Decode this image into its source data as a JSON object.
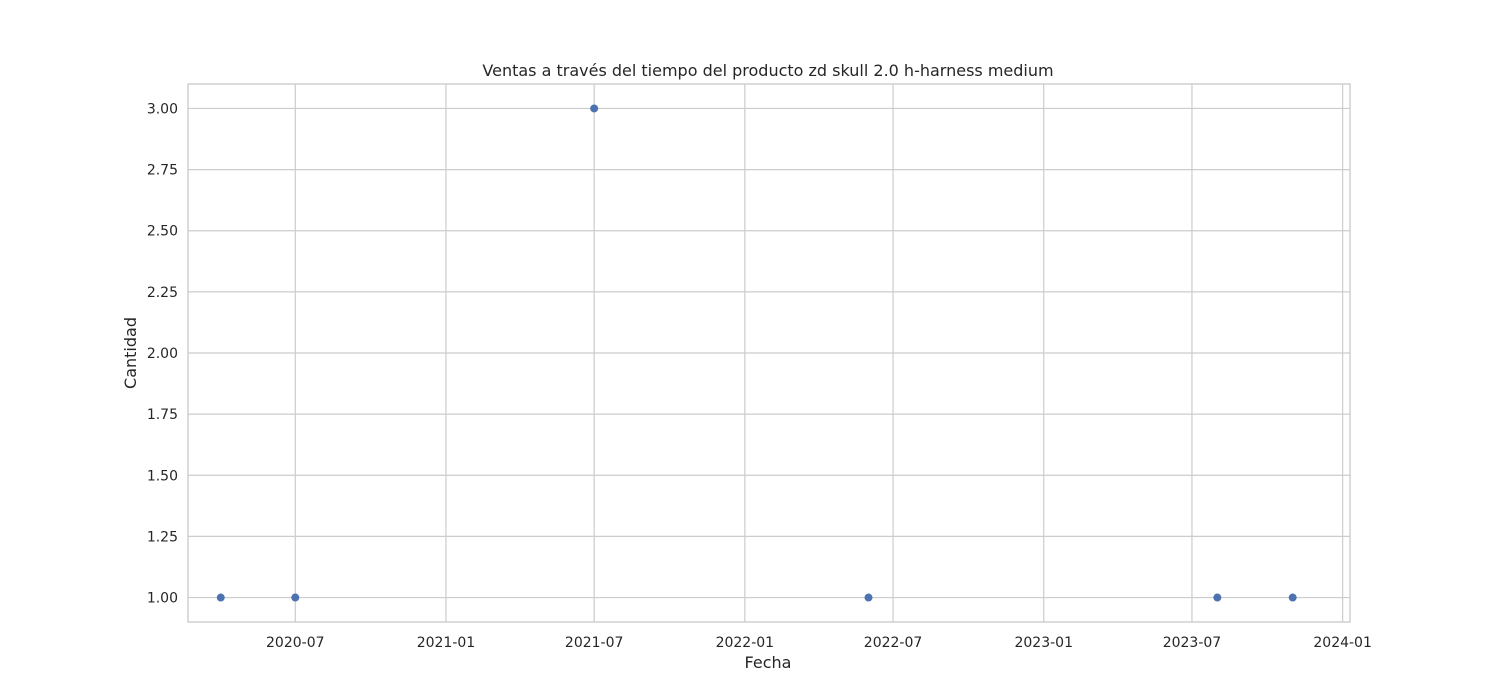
{
  "chart_data": {
    "type": "scatter",
    "title": "Ventas a través del tiempo del producto zd skull 2.0 h-harness medium",
    "xlabel": "Fecha",
    "ylabel": "Cantidad",
    "x_scale": "time",
    "xlim": [
      "2020-02-21",
      "2024-01-10"
    ],
    "ylim": [
      0.9,
      3.1
    ],
    "x_ticks": [
      "2020-07",
      "2021-01",
      "2021-07",
      "2022-01",
      "2022-07",
      "2023-01",
      "2023-07",
      "2024-01"
    ],
    "y_ticks": [
      "1.00",
      "1.25",
      "1.50",
      "1.75",
      "2.00",
      "2.25",
      "2.50",
      "2.75",
      "3.00"
    ],
    "grid": true,
    "marker_color": "#4c72b0",
    "series": [
      {
        "points": [
          {
            "x": "2020-04-01",
            "y": 1
          },
          {
            "x": "2020-07-01",
            "y": 1
          },
          {
            "x": "2021-07-01",
            "y": 3
          },
          {
            "x": "2022-06-01",
            "y": 1
          },
          {
            "x": "2023-08-01",
            "y": 1
          },
          {
            "x": "2023-11-01",
            "y": 1
          }
        ]
      }
    ]
  }
}
